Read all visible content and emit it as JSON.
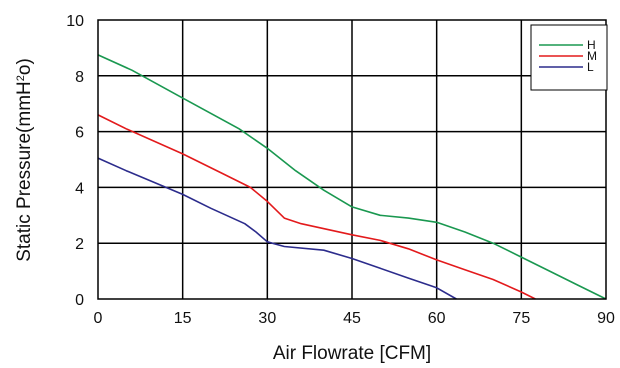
{
  "chart_data": {
    "type": "line",
    "title": "",
    "xlabel": "Air  Flowrate   [CFM]",
    "ylabel": {
      "text_before": "Static Pressure(mmH",
      "superscript": "2",
      "text_after": "o)"
    },
    "xlim": [
      0,
      90
    ],
    "ylim": [
      0,
      10
    ],
    "x_ticks": [
      0,
      15,
      30,
      45,
      60,
      75,
      90
    ],
    "y_ticks": [
      0,
      2,
      4,
      6,
      8,
      10
    ],
    "grid": true,
    "legend_position": "top-right",
    "series": [
      {
        "name": "H",
        "color": "#1a9850",
        "points": [
          [
            0,
            8.75
          ],
          [
            6,
            8.2
          ],
          [
            15,
            7.2
          ],
          [
            25,
            6.1
          ],
          [
            30,
            5.4
          ],
          [
            35,
            4.6
          ],
          [
            40,
            3.9
          ],
          [
            45,
            3.3
          ],
          [
            50,
            3.0
          ],
          [
            55,
            2.9
          ],
          [
            60,
            2.75
          ],
          [
            65,
            2.4
          ],
          [
            70,
            2.0
          ],
          [
            75,
            1.5
          ],
          [
            80,
            1.0
          ],
          [
            85,
            0.5
          ],
          [
            90,
            0.0
          ]
        ]
      },
      {
        "name": "M",
        "color": "#e31a1c",
        "points": [
          [
            0,
            6.6
          ],
          [
            5,
            6.1
          ],
          [
            15,
            5.2
          ],
          [
            22,
            4.5
          ],
          [
            27,
            4.0
          ],
          [
            30,
            3.5
          ],
          [
            33,
            2.9
          ],
          [
            36,
            2.7
          ],
          [
            45,
            2.3
          ],
          [
            50,
            2.1
          ],
          [
            55,
            1.8
          ],
          [
            60,
            1.4
          ],
          [
            65,
            1.05
          ],
          [
            70,
            0.7
          ],
          [
            75,
            0.25
          ],
          [
            77.5,
            0.0
          ]
        ]
      },
      {
        "name": "L",
        "color": "#2c2c8c",
        "points": [
          [
            0,
            5.05
          ],
          [
            5,
            4.6
          ],
          [
            15,
            3.75
          ],
          [
            20,
            3.25
          ],
          [
            26,
            2.7
          ],
          [
            28,
            2.4
          ],
          [
            30,
            2.05
          ],
          [
            33,
            1.88
          ],
          [
            40,
            1.75
          ],
          [
            45,
            1.45
          ],
          [
            50,
            1.1
          ],
          [
            55,
            0.75
          ],
          [
            60,
            0.4
          ],
          [
            63.5,
            0.0
          ]
        ]
      }
    ]
  }
}
